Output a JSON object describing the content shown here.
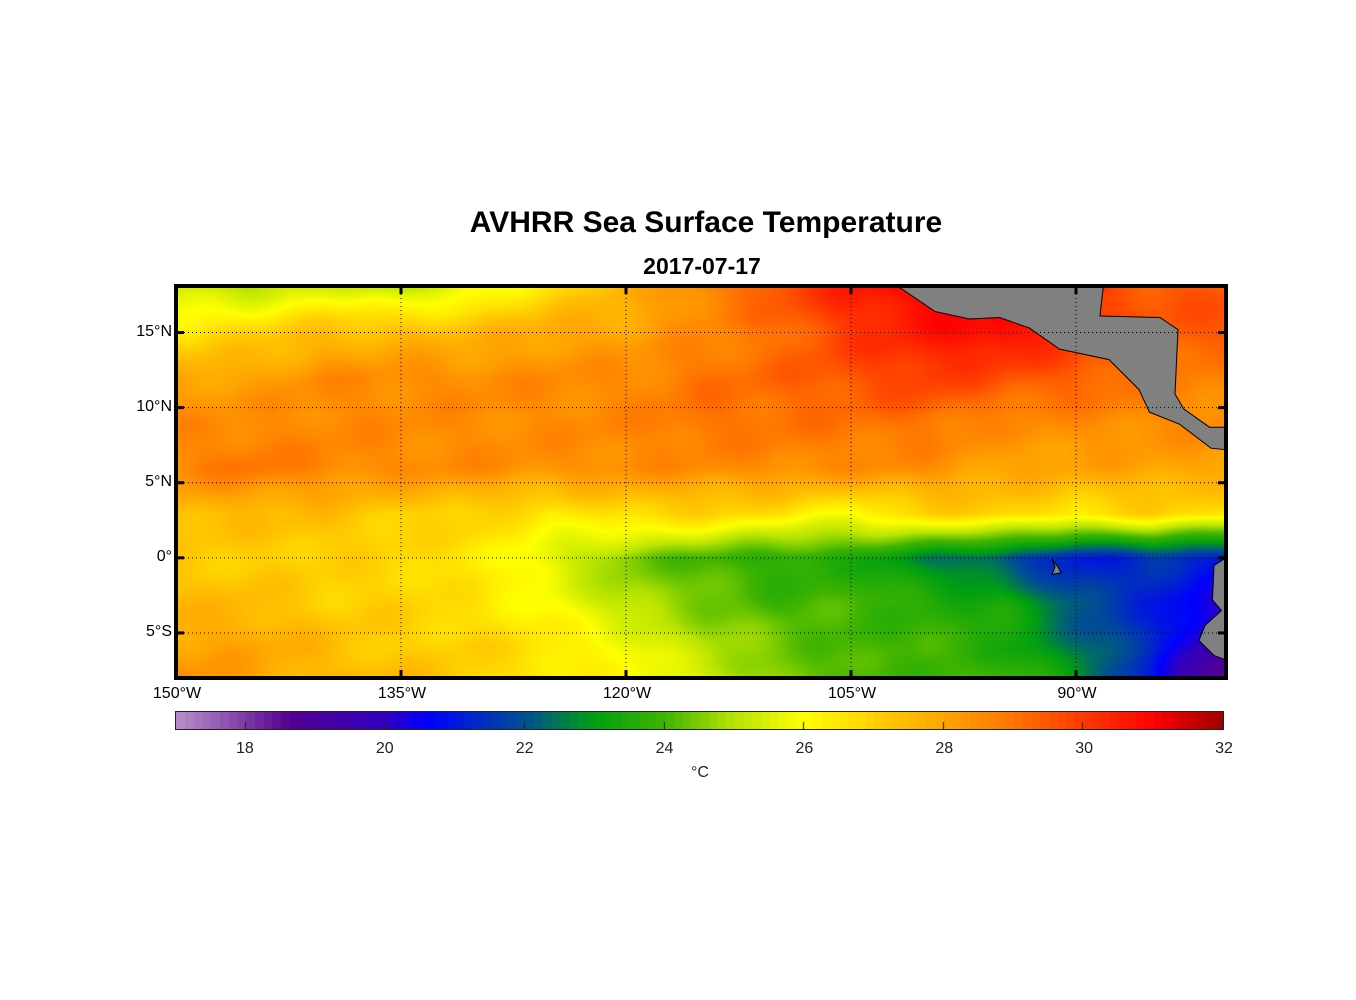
{
  "chart_data": {
    "type": "heatmap",
    "title": "AVHRR Sea Surface Temperature",
    "subtitle": "2017-07-17",
    "xlim": [
      -150,
      -80
    ],
    "ylim": [
      -8,
      18.1
    ],
    "xticks": [
      {
        "value": -150,
        "label": "150°W"
      },
      {
        "value": -135,
        "label": "135°W"
      },
      {
        "value": -120,
        "label": "120°W"
      },
      {
        "value": -105,
        "label": "105°W"
      },
      {
        "value": -90,
        "label": "90°W"
      }
    ],
    "yticks": [
      {
        "value": 15,
        "label": "15°N"
      },
      {
        "value": 10,
        "label": "10°N"
      },
      {
        "value": 5,
        "label": "5°N"
      },
      {
        "value": 0,
        "label": "0°"
      },
      {
        "value": -5,
        "label": "5°S"
      }
    ],
    "grid": true,
    "colorbar": {
      "range": [
        17,
        32
      ],
      "ticks": [
        18,
        20,
        22,
        24,
        26,
        28,
        30,
        32
      ],
      "tick_labels": [
        "18",
        "20",
        "22",
        "24",
        "26",
        "28",
        "30",
        "32"
      ],
      "label": "°C",
      "stops": [
        [
          17,
          "#b890cc"
        ],
        [
          18,
          "#7c3aa4"
        ],
        [
          18.6,
          "#560090"
        ],
        [
          20,
          "#3000c0"
        ],
        [
          20.6,
          "#0000ff"
        ],
        [
          22,
          "#005090"
        ],
        [
          23,
          "#00a010"
        ],
        [
          24,
          "#40b400"
        ],
        [
          25,
          "#b8e400"
        ],
        [
          26,
          "#ffff00"
        ],
        [
          27,
          "#ffd000"
        ],
        [
          28,
          "#ffa400"
        ],
        [
          29,
          "#ff7400"
        ],
        [
          30,
          "#ff3800"
        ],
        [
          31,
          "#ff0000"
        ],
        [
          32,
          "#a00000"
        ]
      ]
    },
    "grid_lons": [
      -150,
      -145,
      -140,
      -135,
      -130,
      -125,
      -120,
      -115,
      -110,
      -105,
      -100,
      -95,
      -90,
      -85,
      -80
    ],
    "grid_lats": [
      18,
      15,
      12,
      9,
      6,
      3,
      0,
      -3,
      -6,
      -8
    ],
    "sst": [
      [
        25.3,
        25.0,
        25.6,
        25.0,
        25.8,
        26.6,
        27.6,
        28.6,
        29.6,
        30.5,
        31.0,
        30.8,
        30.0,
        29.5,
        29.5
      ],
      [
        26.5,
        27.0,
        27.4,
        27.5,
        27.5,
        28.0,
        28.0,
        28.5,
        29.0,
        30.0,
        30.6,
        31.0,
        30.0,
        29.5,
        29.5
      ],
      [
        28.0,
        28.0,
        28.5,
        28.5,
        28.5,
        28.5,
        28.5,
        29.0,
        29.2,
        29.6,
        30.0,
        29.6,
        29.4,
        29.0,
        28.5
      ],
      [
        28.5,
        28.5,
        28.6,
        28.5,
        28.5,
        28.5,
        28.6,
        29.0,
        29.0,
        29.0,
        29.0,
        28.5,
        28.5,
        28.5,
        28.5
      ],
      [
        28.6,
        29.0,
        28.6,
        28.5,
        28.5,
        28.4,
        28.5,
        28.5,
        28.5,
        28.5,
        28.4,
        28.0,
        28.0,
        28.0,
        28.0
      ],
      [
        27.5,
        27.5,
        27.4,
        27.0,
        27.0,
        26.4,
        26.8,
        27.0,
        26.6,
        26.0,
        27.0,
        27.0,
        26.5,
        27.0,
        26.5
      ],
      [
        27.0,
        27.0,
        27.0,
        26.8,
        26.5,
        25.5,
        24.5,
        24.0,
        23.6,
        23.5,
        22.6,
        22.0,
        21.0,
        21.5,
        21.0
      ],
      [
        27.5,
        27.5,
        27.0,
        27.0,
        26.5,
        26.0,
        25.0,
        24.5,
        24.0,
        24.0,
        23.6,
        23.4,
        22.0,
        21.2,
        20.0
      ],
      [
        28.0,
        28.0,
        27.5,
        27.0,
        27.0,
        26.5,
        26.0,
        25.0,
        24.5,
        24.0,
        24.0,
        23.5,
        22.5,
        21.3,
        19.2
      ],
      [
        28.5,
        28.0,
        27.5,
        27.5,
        27.0,
        26.5,
        26.0,
        25.5,
        24.5,
        24.0,
        24.0,
        24.0,
        23.0,
        21.0,
        18.0
      ]
    ],
    "land": [
      {
        "name": "central-america",
        "coords": [
          [
            -101.9,
            18.1
          ],
          [
            -99.4,
            16.4
          ],
          [
            -97.1,
            15.9
          ],
          [
            -95.1,
            16.0
          ],
          [
            -93.1,
            15.3
          ],
          [
            -91.1,
            13.9
          ],
          [
            -87.8,
            13.2
          ],
          [
            -85.8,
            11.2
          ],
          [
            -85.1,
            9.7
          ],
          [
            -83.1,
            8.9
          ],
          [
            -81.0,
            7.3
          ],
          [
            -80,
            7.2
          ],
          [
            -80,
            8.7
          ],
          [
            -81.1,
            8.7
          ],
          [
            -82.8,
            9.9
          ],
          [
            -83.4,
            10.9
          ],
          [
            -83.2,
            15.2
          ],
          [
            -84.4,
            16.0
          ],
          [
            -88.4,
            16.1
          ],
          [
            -88.2,
            17.9
          ],
          [
            -88.0,
            18.1
          ]
        ]
      },
      {
        "name": "south-america",
        "coords": [
          [
            -80,
            0
          ],
          [
            -80.8,
            -0.5
          ],
          [
            -80.9,
            -2.8
          ],
          [
            -80.3,
            -3.5
          ],
          [
            -81.4,
            -4.5
          ],
          [
            -81.8,
            -5.5
          ],
          [
            -80.8,
            -6.5
          ],
          [
            -80,
            -6.8
          ]
        ]
      },
      {
        "name": "galapagos",
        "coords": [
          [
            -91.6,
            -0.1
          ],
          [
            -91.2,
            -0.6
          ],
          [
            -91.0,
            -1.0
          ],
          [
            -91.6,
            -1.1
          ],
          [
            -91.4,
            -0.6
          ]
        ]
      }
    ],
    "land_color": "#808080"
  }
}
